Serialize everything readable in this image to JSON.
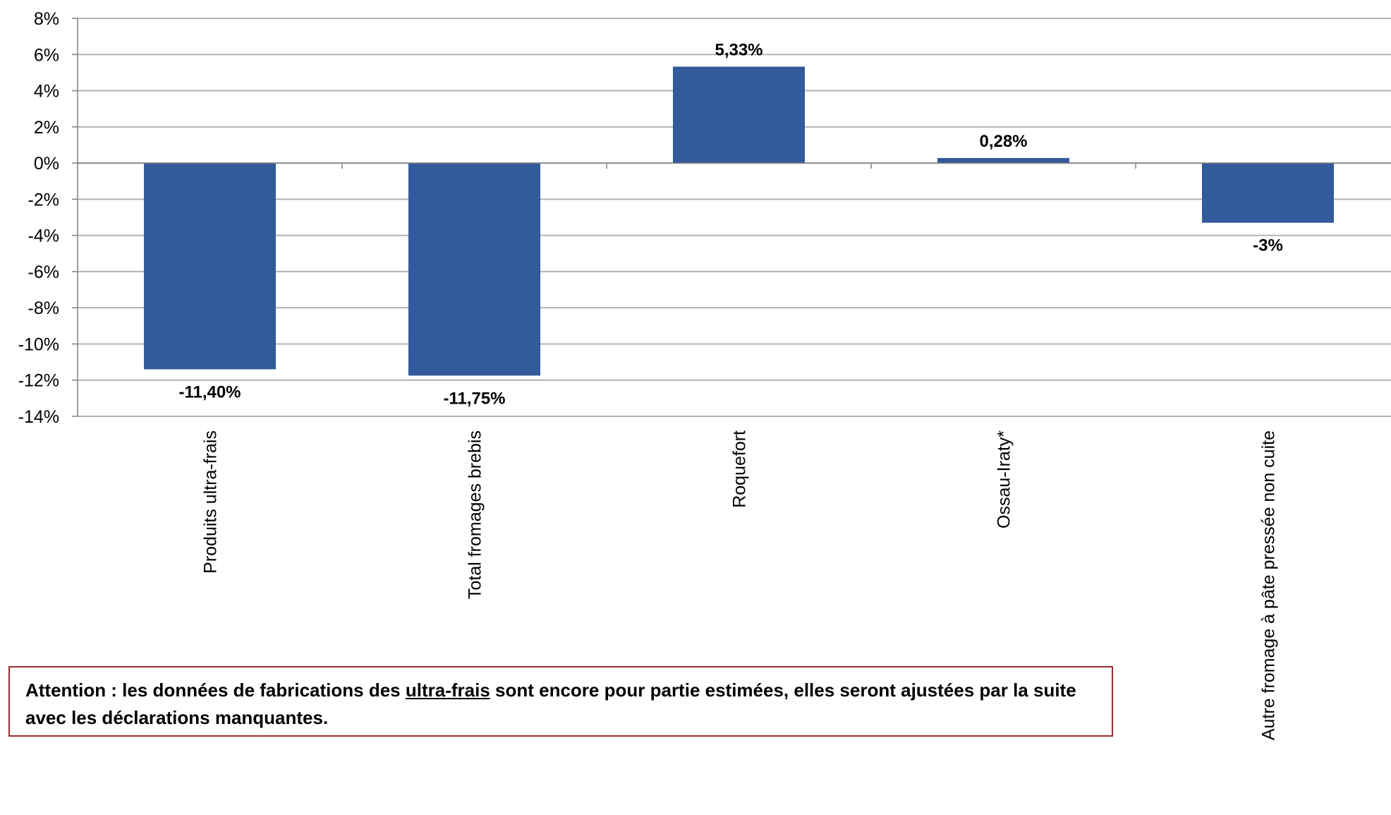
{
  "chart_data": {
    "type": "bar",
    "categories": [
      "Produits ultra-frais",
      "Total fromages brebis",
      "Roquefort",
      "Ossau-Iraty*",
      "Autre fromage à pâte pressée non cuite"
    ],
    "values": [
      -11.4,
      -11.75,
      5.33,
      0.28,
      -3.3
    ],
    "data_labels": [
      "-11,40%",
      "-11,75%",
      "5,33%",
      "0,28%",
      "-3%"
    ],
    "ylim": [
      -14,
      8
    ],
    "yticks": [
      8,
      6,
      4,
      2,
      0,
      -2,
      -4,
      -6,
      -8,
      -10,
      -12,
      -14
    ],
    "ytick_labels": [
      "8%",
      "6%",
      "4%",
      "2%",
      "0%",
      "-2%",
      "-4%",
      "-6%",
      "-8%",
      "-10%",
      "-12%",
      "-14%"
    ],
    "bar_color": "#325a9c",
    "grid": true,
    "legend": "none"
  },
  "note": {
    "prefix": "Attention : les données de fabrications des ",
    "underlined": "ultra-frais",
    "suffix": " sont encore pour partie estimées, elles seront ajustées par la suite avec les déclarations manquantes.",
    "border_color": "#9b2d30"
  }
}
